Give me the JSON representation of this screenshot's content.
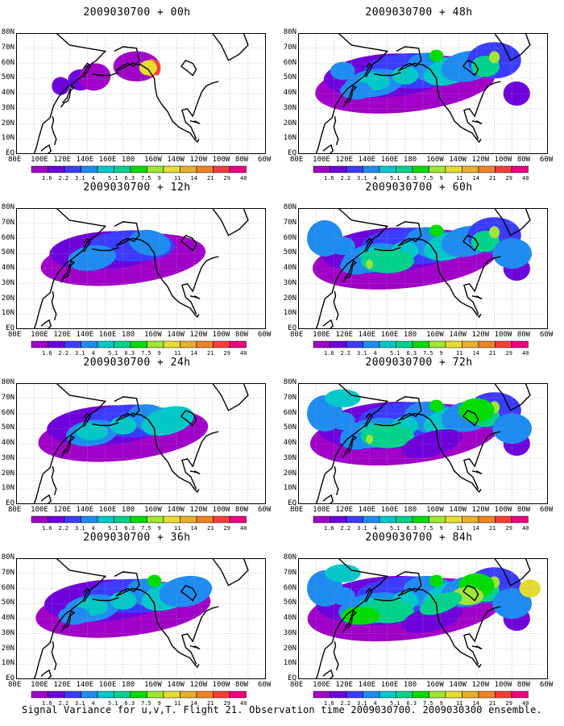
{
  "caption": "Signal Variance for u,v,T. Flight 21. Observation time 2009030700. 2009030300 ensemble.",
  "panels": [
    {
      "title": "2009030700 + 00h",
      "lead_hours": 0
    },
    {
      "title": "2009030700 + 48h",
      "lead_hours": 48
    },
    {
      "title": "2009030700 + 12h",
      "lead_hours": 12
    },
    {
      "title": "2009030700 + 60h",
      "lead_hours": 60
    },
    {
      "title": "2009030700 + 24h",
      "lead_hours": 24
    },
    {
      "title": "2009030700 + 72h",
      "lead_hours": 72
    },
    {
      "title": "2009030700 + 36h",
      "lead_hours": 36
    },
    {
      "title": "2009030700 + 84h",
      "lead_hours": 84
    }
  ],
  "lat_labels": [
    "80N",
    "70N",
    "60N",
    "50N",
    "40N",
    "30N",
    "20N",
    "10N",
    "EQ"
  ],
  "lon_labels": [
    "80E",
    "100E",
    "120E",
    "140E",
    "160E",
    "180",
    "160W",
    "140W",
    "120W",
    "100W",
    "80W",
    "60W"
  ],
  "colorbar": {
    "labels": [
      "1.6",
      "2.2",
      "3.1",
      "4",
      "5.1",
      "6.3",
      "7.5",
      "9",
      "11",
      "14",
      "21",
      "29",
      "40"
    ],
    "colors": [
      "#a000c8",
      "#6e00dc",
      "#3c3cff",
      "#1e8cf0",
      "#00c8c8",
      "#00d28c",
      "#00dc00",
      "#a0e632",
      "#e6dc32",
      "#e6af2d",
      "#f08228",
      "#fa3c3c",
      "#f00082"
    ]
  },
  "map": {
    "land_color": "#000000",
    "grid_color": "#a0a0a0",
    "grid_style": "dotted"
  }
}
